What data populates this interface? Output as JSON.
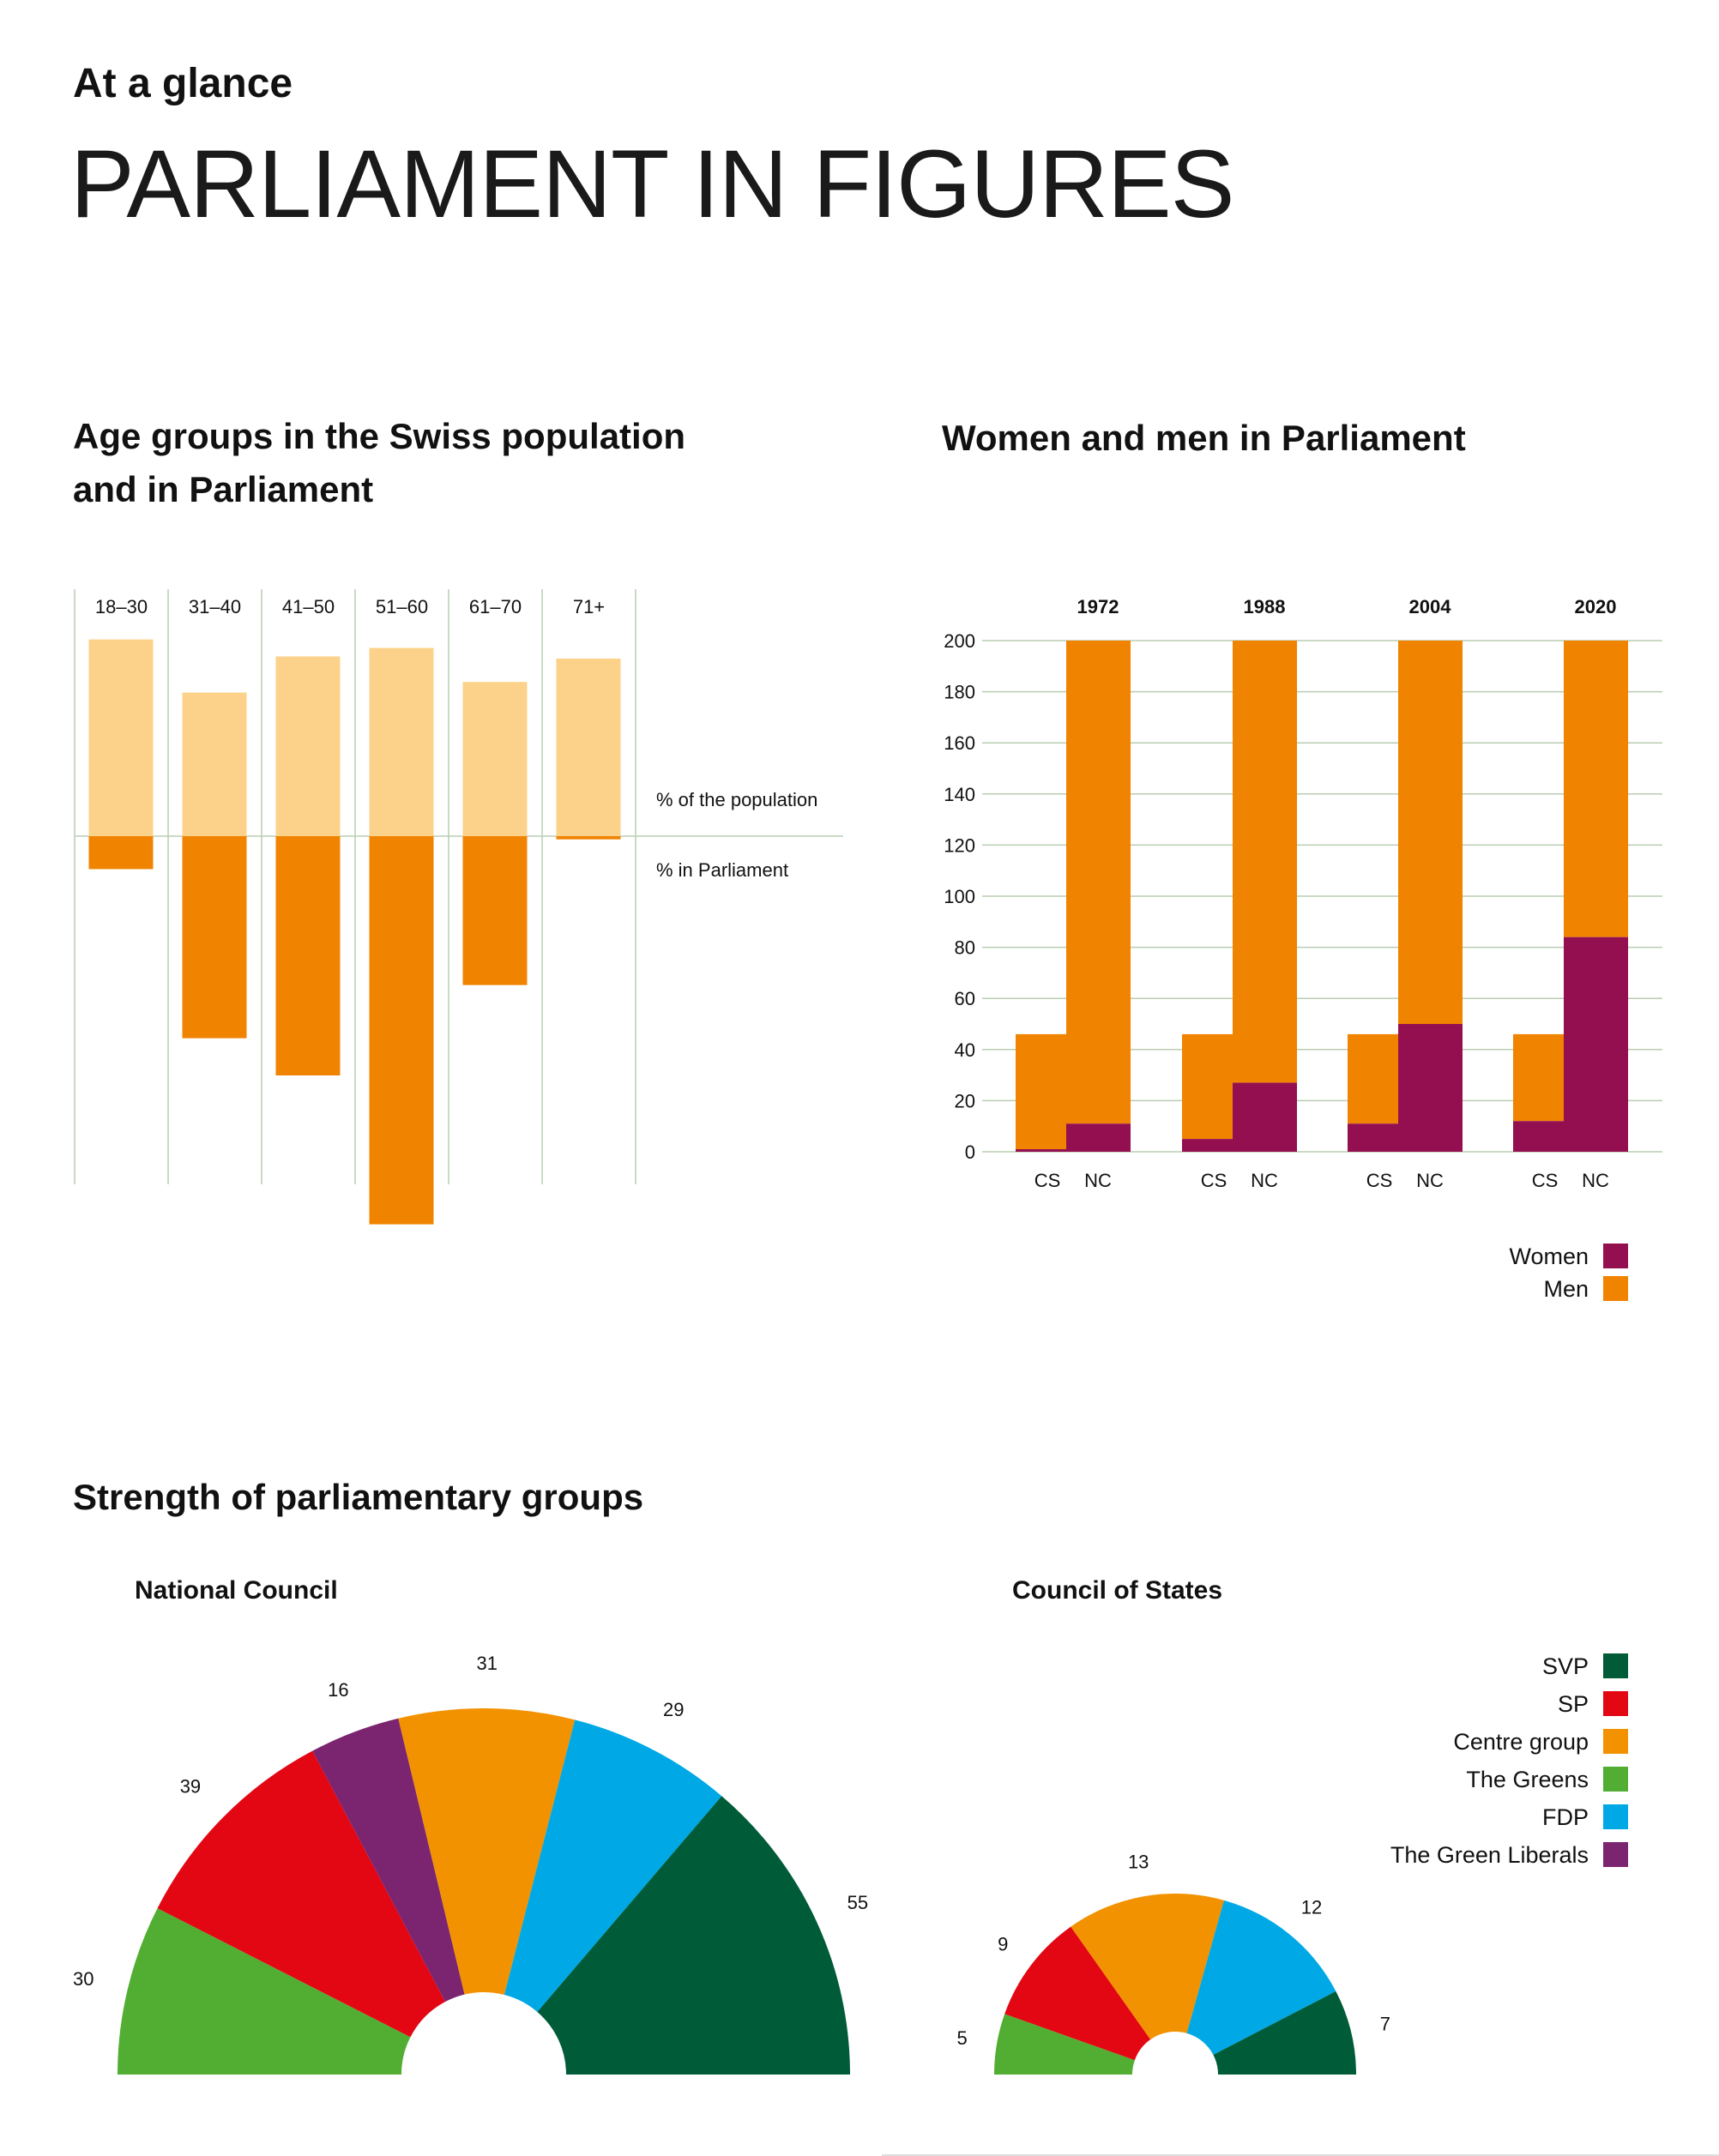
{
  "header": {
    "kicker": "At a glance",
    "title": "PARLIAMENT IN FIGURES"
  },
  "colors": {
    "men": "#f08300",
    "population": "#fcd28a",
    "women": "#940f50",
    "grid": "#b9cdb2",
    "SVP": "#005c38",
    "SP": "#e30613",
    "Centre group": "#f39200",
    "The Greens": "#52ae32",
    "FDP": "#00a9e6",
    "The Green Liberals": "#7b2570"
  },
  "chart_data": [
    {
      "type": "bar",
      "title": "Age groups in the Swiss population and in Parliament",
      "title_lines": [
        "Age groups in the Swiss population",
        "and in Parliament"
      ],
      "categories": [
        "18–30",
        "31–40",
        "41–50",
        "51–60",
        "61–70",
        "71+"
      ],
      "series": [
        {
          "name": "% of the population",
          "values": [
            18.5,
            13.5,
            16.9,
            17.7,
            14.5,
            16.7
          ]
        },
        {
          "name": "% in Parliament",
          "values": [
            3.1,
            19.0,
            22.5,
            36.5,
            14.0,
            0.3
          ]
        }
      ],
      "note": "values approximate, no axis shown"
    },
    {
      "type": "bar",
      "stacked": true,
      "title": "Women and men in Parliament",
      "groups": [
        "1972",
        "1988",
        "2004",
        "2020"
      ],
      "sub_categories": [
        "CS",
        "NC"
      ],
      "yticks": [
        "0",
        "20",
        "40",
        "60",
        "80",
        "100",
        "120",
        "140",
        "160",
        "180",
        "200"
      ],
      "ylim": [
        0,
        200
      ],
      "grid": true,
      "series": [
        {
          "name": "Women",
          "values": {
            "CS": [
              1,
              5,
              11,
              12
            ],
            "NC": [
              11,
              27,
              50,
              84
            ]
          }
        },
        {
          "name": "Men",
          "values": {
            "CS": [
              45,
              41,
              35,
              34
            ],
            "NC": [
              189,
              173,
              150,
              116
            ]
          }
        }
      ],
      "totals": {
        "CS": 46,
        "NC": 200
      },
      "legend": [
        "Women",
        "Men"
      ],
      "legend_position": "bottom-right"
    },
    {
      "type": "pie",
      "shape": "half-donut",
      "section_title": "Strength of parliamentary groups",
      "title": "National Council",
      "slices": [
        {
          "label": "The Greens",
          "value": 30
        },
        {
          "label": "SP",
          "value": 39
        },
        {
          "label": "The Green Liberals",
          "value": 16
        },
        {
          "label": "Centre group",
          "value": 31
        },
        {
          "label": "FDP",
          "value": 29
        },
        {
          "label": "SVP",
          "value": 55
        }
      ]
    },
    {
      "type": "pie",
      "shape": "half-donut",
      "title": "Council of States",
      "slices": [
        {
          "label": "The Greens",
          "value": 5
        },
        {
          "label": "SP",
          "value": 9
        },
        {
          "label": "Centre group",
          "value": 13
        },
        {
          "label": "FDP",
          "value": 12
        },
        {
          "label": "SVP",
          "value": 7
        }
      ],
      "legend": [
        "SVP",
        "SP",
        "Centre group",
        "The Greens",
        "FDP",
        "The Green Liberals"
      ],
      "legend_position": "right"
    }
  ]
}
